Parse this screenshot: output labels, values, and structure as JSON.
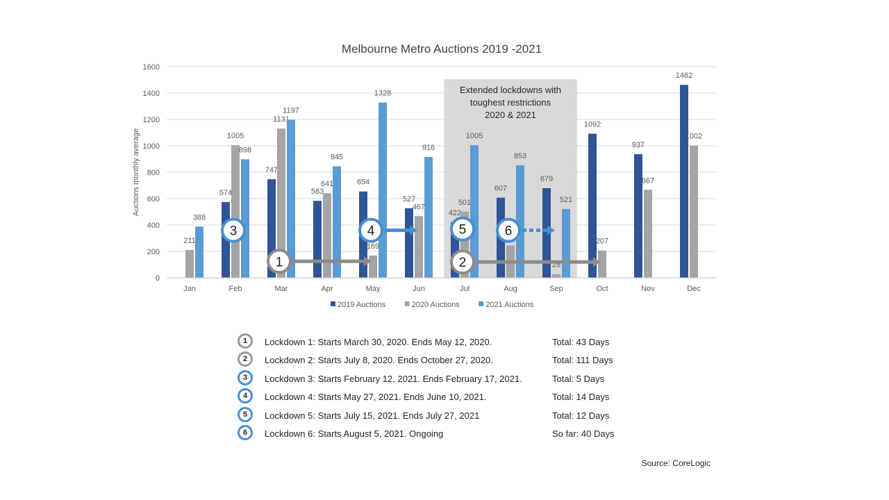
{
  "chart_data": {
    "type": "bar",
    "title": "Melbourne Metro Auctions 2019 -2021",
    "ylabel": "Auctions monthly average",
    "xlabel": "",
    "ylim": [
      0,
      1600
    ],
    "yticks": [
      0,
      200,
      400,
      600,
      800,
      1000,
      1200,
      1400,
      1600
    ],
    "grid": true,
    "legend_position": "bottom",
    "categories": [
      "Jan",
      "Feb",
      "Mar",
      "Apr",
      "May",
      "Jun",
      "Jul",
      "Aug",
      "Sep",
      "Oct",
      "Nov",
      "Dec"
    ],
    "series": [
      {
        "name": "2019 Auctions",
        "color": "#2f5597",
        "values": [
          null,
          574,
          747,
          583,
          654,
          527,
          422,
          607,
          679,
          1092,
          937,
          1462
        ]
      },
      {
        "name": "2020 Auctions",
        "color": "#a5a5a5",
        "values": [
          211,
          1005,
          1131,
          641,
          169,
          467,
          501,
          245,
          28,
          207,
          667,
          1002
        ]
      },
      {
        "name": "2021 Auctions",
        "color": "#5b9bd5",
        "values": [
          388,
          898,
          1197,
          845,
          1328,
          916,
          1005,
          853,
          521,
          null,
          null,
          null
        ]
      }
    ],
    "shaded_region": {
      "from_category": "Jul",
      "to_category": "Sep",
      "text": [
        "Extended lockdowns with",
        "toughest restrictions",
        "2020 & 2021"
      ]
    },
    "lockdown_markers": [
      {
        "num": "1",
        "style": "grey",
        "level": 125,
        "from": "Mar",
        "to": "May"
      },
      {
        "num": "2",
        "style": "grey",
        "level": 120,
        "from": "Jul",
        "to": "Oct"
      },
      {
        "num": "3",
        "style": "blue",
        "level": 360,
        "from": "Feb",
        "to": "Feb"
      },
      {
        "num": "4",
        "style": "blue",
        "level": 360,
        "from": "May",
        "to": "Jun"
      },
      {
        "num": "5",
        "style": "blue",
        "level": 370,
        "from": "Jul",
        "to": "Jul"
      },
      {
        "num": "6",
        "style": "blue",
        "level": 360,
        "from": "Aug",
        "to": "Sep"
      }
    ]
  },
  "lockdowns": [
    {
      "num": "1",
      "style": "grey",
      "desc": "Lockdown 1:  Starts March 30, 2020.  Ends May 12, 2020.",
      "total": "Total: 43  Days"
    },
    {
      "num": "2",
      "style": "grey",
      "desc": "Lockdown 2:  Starts July 8, 2020.  Ends October 27, 2020.",
      "total": "Total: 111  Days"
    },
    {
      "num": "3",
      "style": "blue",
      "desc": "Lockdown 3:  Starts February 12, 2021.  Ends February 17, 2021.",
      "total": "Total: 5 Days"
    },
    {
      "num": "4",
      "style": "blue",
      "desc": "Lockdown 4:  Starts May 27, 2021.  Ends June 10, 2021.",
      "total": "Total: 14  Days"
    },
    {
      "num": "5",
      "style": "blue",
      "desc": "Lockdown 5:  Starts July 15, 2021.  Ends July 27, 2021",
      "total": "Total: 12  Days"
    },
    {
      "num": "6",
      "style": "blue",
      "desc": "Lockdown 6:  Starts August 5, 2021.   Ongoing",
      "total": "So far: 40 Days"
    }
  ],
  "source": "Source: CoreLogic"
}
